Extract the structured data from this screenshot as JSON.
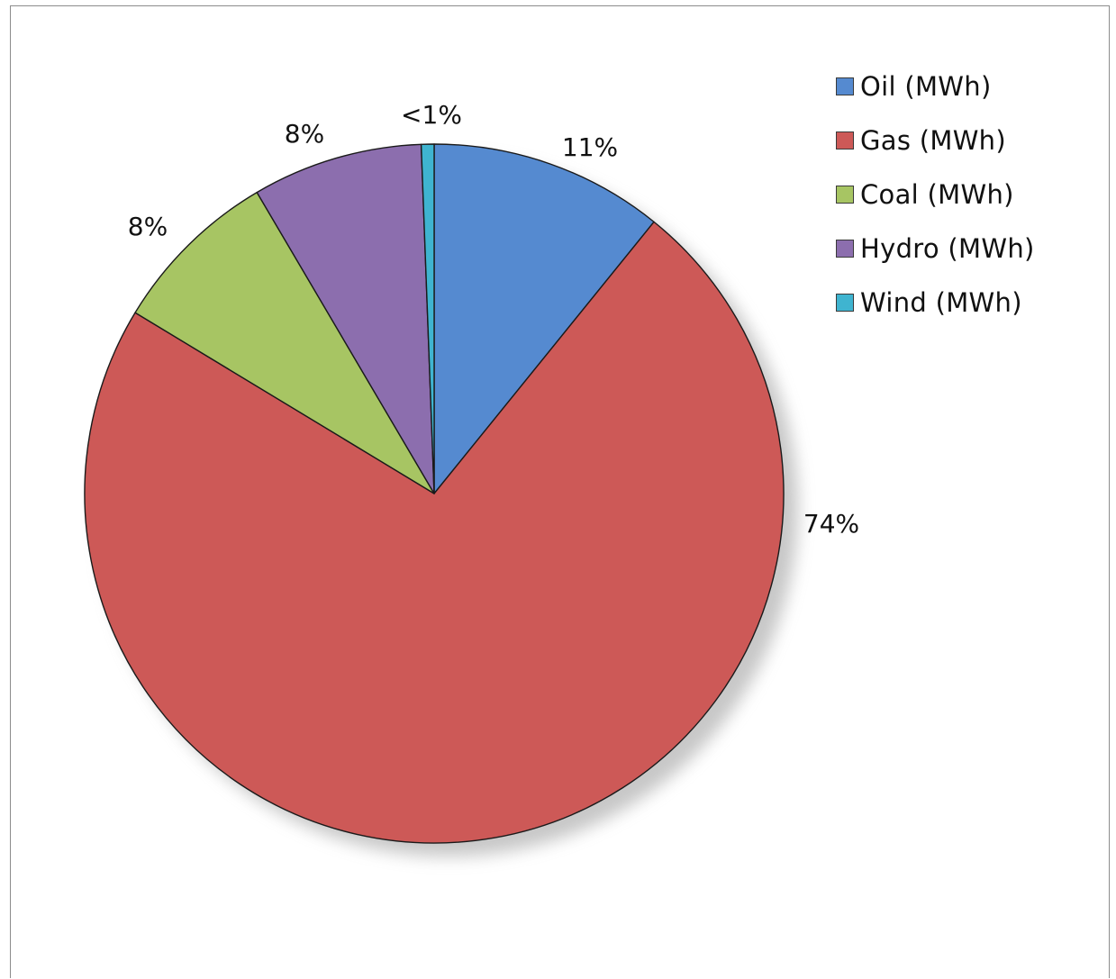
{
  "chart_data": {
    "type": "pie",
    "title": "",
    "start_angle_deg": 0,
    "direction": "clockwise",
    "slices": [
      {
        "name": "Oil (MWh)",
        "value": 11,
        "label": "11%",
        "color": "#558ad0"
      },
      {
        "name": "Gas (MWh)",
        "value": 74,
        "label": "74%",
        "color": "#cd5957"
      },
      {
        "name": "Coal (MWh)",
        "value": 8,
        "label": "8%",
        "color": "#a7c563"
      },
      {
        "name": "Hydro (MWh)",
        "value": 8,
        "label": "8%",
        "color": "#8c6eae"
      },
      {
        "name": "Wind (MWh)",
        "value": 0.6,
        "label": "<1%",
        "color": "#3fb4d0"
      }
    ],
    "legend_position": "top-right"
  }
}
